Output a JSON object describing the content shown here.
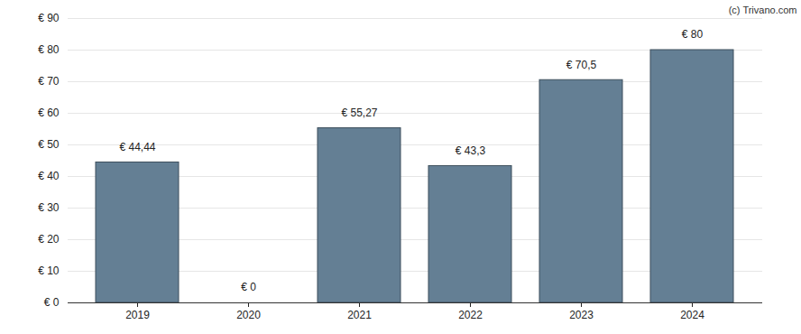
{
  "chart_data": {
    "type": "bar",
    "annotation": "(c) Trivano.com",
    "categories": [
      "2019",
      "2020",
      "2021",
      "2022",
      "2023",
      "2024"
    ],
    "values": [
      44.44,
      0,
      55.27,
      43.3,
      70.5,
      80
    ],
    "value_labels": [
      "€ 44,44",
      "€ 0",
      "€ 55,27",
      "€ 43,3",
      "€ 70,5",
      "€ 80"
    ],
    "data_labels": true,
    "color": "#647f94",
    "ylim": [
      0,
      90
    ],
    "yticks": [
      {
        "value": 0,
        "label": "€ 0"
      },
      {
        "value": 10,
        "label": "€ 10"
      },
      {
        "value": 20,
        "label": "€ 20"
      },
      {
        "value": 30,
        "label": "€ 30"
      },
      {
        "value": 40,
        "label": "€ 40"
      },
      {
        "value": 50,
        "label": "€ 50"
      },
      {
        "value": 60,
        "label": "€ 60"
      },
      {
        "value": 70,
        "label": "€ 70"
      },
      {
        "value": 80,
        "label": "€ 80"
      },
      {
        "value": 90,
        "label": "€ 90"
      }
    ],
    "grid": true
  }
}
